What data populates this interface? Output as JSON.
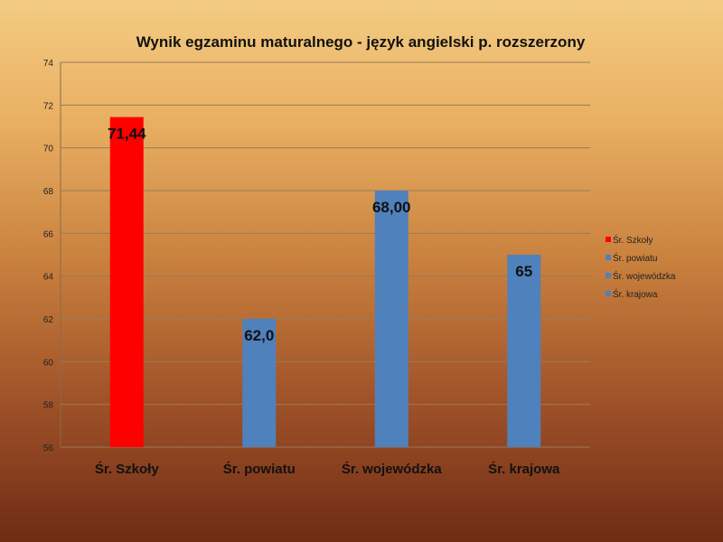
{
  "chart_data": {
    "type": "bar",
    "title": "Wynik egzaminu maturalnego - język angielski p. rozszerzony",
    "xlabel": "",
    "ylabel": "",
    "ylim": [
      56,
      74
    ],
    "yticks": [
      "56",
      "58",
      "60",
      "62",
      "64",
      "66",
      "68",
      "70",
      "72",
      "74"
    ],
    "grid": true,
    "legend_position": "right",
    "categories": [
      "Śr. Szkoły",
      "Śr. powiatu",
      "Śr. wojewódzka",
      "Śr. krajowa"
    ],
    "values": [
      71.44,
      62.0,
      68.0,
      65
    ],
    "data_labels": [
      "71,44",
      "62,0",
      "68,00",
      "65"
    ],
    "colors": [
      "#ff0000",
      "#4f81bd",
      "#4f81bd",
      "#4f81bd"
    ],
    "legend": [
      {
        "name": "Śr. Szkoły",
        "color": "#ff0000"
      },
      {
        "name": "Śr. powiatu",
        "color": "#4f81bd"
      },
      {
        "name": "Śr. wojewódzka",
        "color": "#4f81bd"
      },
      {
        "name": "Śr. krajowa",
        "color": "#4f81bd"
      }
    ]
  }
}
